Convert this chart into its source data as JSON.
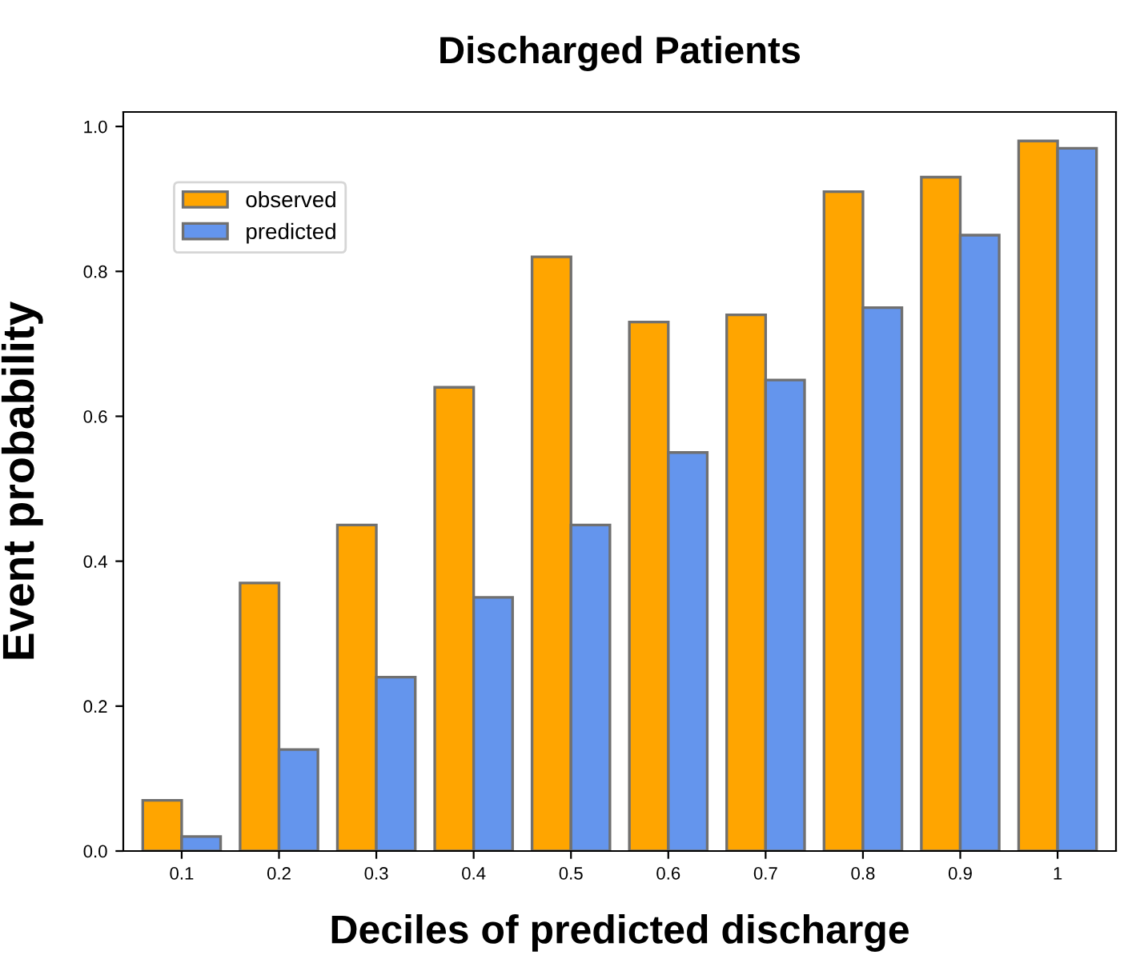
{
  "chart_data": {
    "type": "bar",
    "title": "Discharged Patients",
    "xlabel": "Deciles of predicted discharge",
    "ylabel": "Event probability",
    "categories": [
      "0.1",
      "0.2",
      "0.3",
      "0.4",
      "0.5",
      "0.6",
      "0.7",
      "0.8",
      "0.9",
      "1"
    ],
    "series": [
      {
        "name": "observed",
        "color": "#ffa500",
        "values": [
          0.07,
          0.37,
          0.45,
          0.64,
          0.82,
          0.73,
          0.74,
          0.91,
          0.93,
          0.98
        ]
      },
      {
        "name": "predicted",
        "color": "#6495ed",
        "values": [
          0.02,
          0.14,
          0.24,
          0.35,
          0.45,
          0.55,
          0.65,
          0.75,
          0.85,
          0.97
        ]
      }
    ],
    "ylim": [
      0,
      1.02
    ],
    "yticks": [
      {
        "value": 0,
        "label": "0.0"
      },
      0.2,
      0.4,
      0.6,
      0.8,
      {
        "value": 1,
        "label": "1.0"
      }
    ],
    "legend": "top left",
    "grid": false
  }
}
